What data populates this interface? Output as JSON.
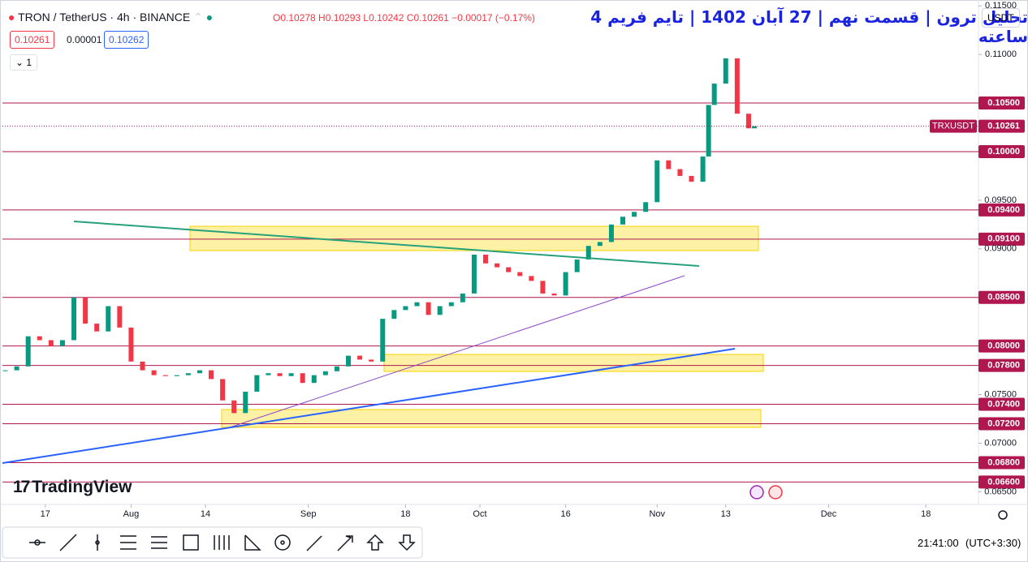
{
  "header": {
    "symbol": "TRON / TetherUS · 4h · BINANCE",
    "ohlc": "O0.10278 H0.10293 L0.10242 C0.10261 −0.00017 (−0.17%)",
    "bid": "0.10261",
    "spread": "0.00001",
    "ask": "0.10262",
    "indicator_count": "1",
    "title": "تحلیل ترون | قسمت نهم | 27 آبان 1402 | تایم فریم 4 ساعته",
    "currency": "USDT",
    "logo": "TradingView",
    "time": "21:41:00",
    "timezone": "(UTC+3:30)"
  },
  "chart_data": {
    "type": "candlestick",
    "x": [
      191,
      193,
      195,
      197,
      199,
      201,
      203,
      205,
      207,
      209,
      211,
      213,
      215,
      217,
      219,
      221,
      223,
      225,
      227,
      229,
      231,
      233,
      235,
      237,
      239,
      241,
      243,
      245,
      247,
      249,
      251,
      253,
      255,
      257,
      259,
      261,
      263,
      265,
      267,
      269,
      271,
      273,
      275,
      277,
      279,
      281,
      283,
      285,
      287,
      289,
      291,
      293,
      295,
      297,
      299,
      301,
      303,
      305,
      307,
      309,
      311,
      313,
      314,
      315,
      317,
      319,
      321,
      322
    ],
    "series": [
      {
        "name": "TRXUSDT",
        "values": [
          0.0775,
          0.0779,
          0.081,
          0.0806,
          0.08,
          0.0806,
          0.085,
          0.0823,
          0.0815,
          0.0841,
          0.0819,
          0.0784,
          0.0775,
          0.077,
          0.0769,
          0.077,
          0.0772,
          0.0775,
          0.0766,
          0.0744,
          0.0731,
          0.0753,
          0.077,
          0.0772,
          0.0769,
          0.0772,
          0.0762,
          0.077,
          0.0774,
          0.0779,
          0.079,
          0.0786,
          0.0784,
          0.0828,
          0.0837,
          0.0841,
          0.0845,
          0.0832,
          0.0841,
          0.0845,
          0.0854,
          0.0894,
          0.0885,
          0.0881,
          0.0876,
          0.0872,
          0.0867,
          0.0854,
          0.0852,
          0.0876,
          0.0889,
          0.0903,
          0.0907,
          0.0925,
          0.0933,
          0.0938,
          0.0948,
          0.0991,
          0.0982,
          0.0975,
          0.0969,
          0.0995,
          0.1048,
          0.107,
          0.1096,
          0.1039,
          0.1024,
          0.10261
        ],
        "up_color": "#089981",
        "down_color": "#f23645"
      }
    ],
    "xlim": [
      190.5,
      361.2
    ],
    "xticks": [
      {
        "value": 198,
        "label": "17"
      },
      {
        "value": 213,
        "label": "Aug"
      },
      {
        "value": 226,
        "label": "14"
      },
      {
        "value": 244,
        "label": "Sep"
      },
      {
        "value": 261,
        "label": "18"
      },
      {
        "value": 274,
        "label": "Oct"
      },
      {
        "value": 289,
        "label": "16"
      },
      {
        "value": 305,
        "label": "Nov"
      },
      {
        "value": 317,
        "label": "13"
      },
      {
        "value": 335,
        "label": "Dec"
      },
      {
        "value": 352,
        "label": "18"
      }
    ],
    "ylim": [
      0.0637,
      0.1156
    ],
    "yticks": [
      {
        "value": 0.115,
        "label": "0.11500"
      },
      {
        "value": 0.11,
        "label": "0.11000"
      },
      {
        "value": 0.095,
        "label": "0.09500"
      },
      {
        "value": 0.09,
        "label": "0.09000"
      },
      {
        "value": 0.075,
        "label": "0.07500"
      },
      {
        "value": 0.07,
        "label": "0.07000"
      },
      {
        "value": 0.065,
        "label": "0.06500"
      }
    ],
    "levels": [
      {
        "value": 0.105,
        "label": "0.10500"
      },
      {
        "value": 0.1,
        "label": "0.10000"
      },
      {
        "value": 0.094,
        "label": "0.09400"
      },
      {
        "value": 0.091,
        "label": "0.09100"
      },
      {
        "value": 0.085,
        "label": "0.08500"
      },
      {
        "value": 0.08,
        "label": "0.08000"
      },
      {
        "value": 0.078,
        "label": "0.07800"
      },
      {
        "value": 0.074,
        "label": "0.07400"
      },
      {
        "value": 0.072,
        "label": "0.07200"
      },
      {
        "value": 0.068,
        "label": "0.06800"
      },
      {
        "value": 0.066,
        "label": "0.06600"
      }
    ],
    "level_color": "#b0174f",
    "last_price": {
      "name": "TRXUSDT",
      "value": 0.10261,
      "label": "0.10261"
    },
    "grid": false
  }
}
